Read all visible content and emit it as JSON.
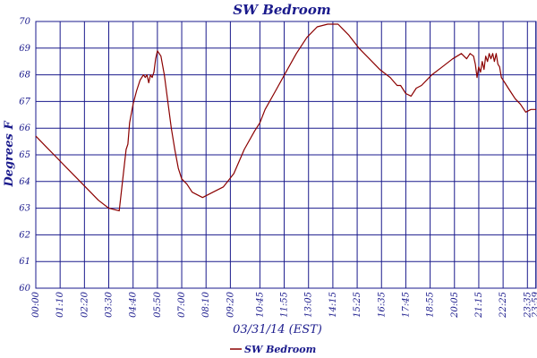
{
  "chart_data": {
    "type": "line",
    "title": "SW Bedroom",
    "xlabel": "03/31/14 (EST)",
    "ylabel": "Degrees F",
    "ylim": [
      60,
      70
    ],
    "xlim_minutes": [
      0,
      1440
    ],
    "grid": true,
    "legend_position": "bottom-center",
    "colors": {
      "line": "#8b0000",
      "grid": "#1a1a8c",
      "text": "#1a1a8c",
      "background": "#ffffff"
    },
    "y_ticks": [
      "60",
      "61",
      "62",
      "63",
      "64",
      "65",
      "66",
      "67",
      "68",
      "69",
      "70"
    ],
    "x_ticks": [
      "00:00",
      "01:10",
      "02:20",
      "03:30",
      "04:40",
      "05:50",
      "07:00",
      "08:10",
      "09:20",
      "10:45",
      "11:55",
      "13:05",
      "14:15",
      "15:25",
      "16:35",
      "17:45",
      "18:55",
      "20:05",
      "21:15",
      "22:25",
      "23:35",
      "23:59"
    ],
    "series": [
      {
        "name": "SW Bedroom",
        "x_minutes": [
          0,
          30,
          60,
          90,
          120,
          150,
          180,
          210,
          240,
          260,
          265,
          270,
          280,
          290,
          300,
          310,
          315,
          320,
          325,
          330,
          335,
          340,
          345,
          350,
          360,
          370,
          380,
          390,
          400,
          410,
          420,
          435,
          450,
          480,
          510,
          540,
          570,
          600,
          630,
          645,
          660,
          690,
          720,
          750,
          780,
          810,
          840,
          870,
          900,
          930,
          960,
          990,
          1020,
          1040,
          1050,
          1065,
          1080,
          1095,
          1110,
          1140,
          1170,
          1200,
          1225,
          1240,
          1250,
          1260,
          1265,
          1270,
          1275,
          1280,
          1285,
          1290,
          1295,
          1300,
          1305,
          1310,
          1315,
          1320,
          1325,
          1330,
          1335,
          1340,
          1350,
          1360,
          1370,
          1380,
          1395,
          1410,
          1425,
          1440
        ],
        "y": [
          65.7,
          65.3,
          64.9,
          64.5,
          64.1,
          63.7,
          63.3,
          63.0,
          62.9,
          65.2,
          65.4,
          66.2,
          66.9,
          67.4,
          67.8,
          68.0,
          67.9,
          68.0,
          67.7,
          68.0,
          67.9,
          68.1,
          68.6,
          68.9,
          68.7,
          68.0,
          67.0,
          66.0,
          65.2,
          64.5,
          64.1,
          63.9,
          63.6,
          63.4,
          63.6,
          63.8,
          64.3,
          65.2,
          65.9,
          66.2,
          66.7,
          67.4,
          68.1,
          68.8,
          69.4,
          69.8,
          69.9,
          69.9,
          69.5,
          69.0,
          68.6,
          68.2,
          67.9,
          67.6,
          67.6,
          67.3,
          67.2,
          67.5,
          67.6,
          68.0,
          68.3,
          68.6,
          68.8,
          68.6,
          68.8,
          68.7,
          68.4,
          67.9,
          68.3,
          68.1,
          68.5,
          68.2,
          68.7,
          68.5,
          68.8,
          68.6,
          68.8,
          68.5,
          68.8,
          68.4,
          68.3,
          67.9,
          67.7,
          67.5,
          67.3,
          67.1,
          66.9,
          66.6,
          66.7,
          66.7
        ]
      }
    ]
  }
}
